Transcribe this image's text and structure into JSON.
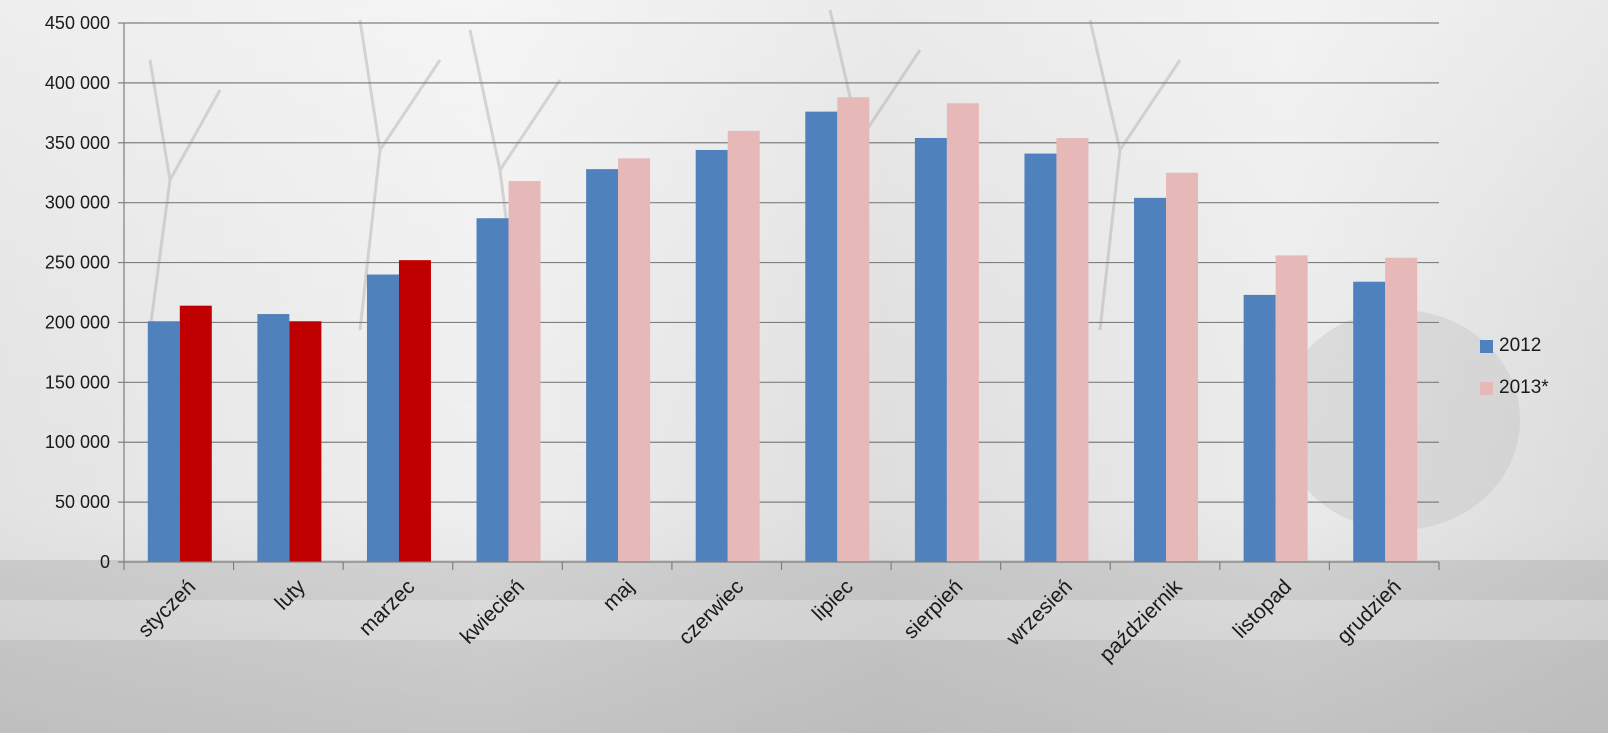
{
  "chart_data": {
    "type": "bar",
    "categories": [
      "styczeń",
      "luty",
      "marzec",
      "kwiecień",
      "maj",
      "czerwiec",
      "lipiec",
      "sierpień",
      "wrzesień",
      "październik",
      "listopad",
      "grudzień"
    ],
    "series": [
      {
        "name": "2012",
        "color": "#4f81bd",
        "values": [
          201000,
          207000,
          240000,
          287000,
          328000,
          344000,
          376000,
          354000,
          341000,
          304000,
          223000,
          234000
        ]
      },
      {
        "name": "2013*",
        "color": "#e6b9b8",
        "highlight_color": "#c00000",
        "highlight_count": 3,
        "values": [
          214000,
          201000,
          252000,
          318000,
          337000,
          360000,
          388000,
          383000,
          354000,
          325000,
          256000,
          254000
        ]
      }
    ],
    "ylim": [
      0,
      450000
    ],
    "yticks": [
      "0",
      "50 000",
      "100 000",
      "150 000",
      "200 000",
      "250 000",
      "300 000",
      "350 000",
      "400 000",
      "450 000"
    ],
    "grid": true,
    "legend_position": "right"
  }
}
